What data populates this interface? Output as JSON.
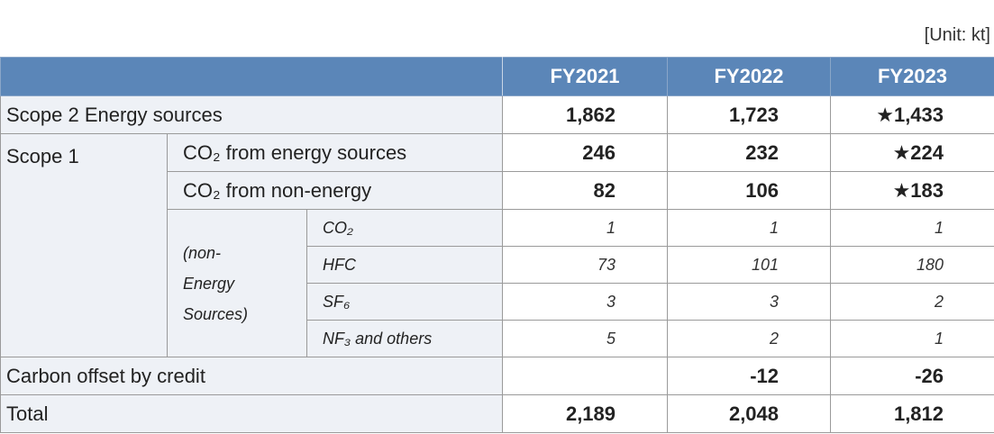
{
  "unit": "[Unit: kt]",
  "table": {
    "header": [
      "FY2021",
      "FY2022",
      "FY2023"
    ],
    "scope2": {
      "label": "Scope 2 Energy sources",
      "values": [
        "1,862",
        "1,723",
        "★1,433"
      ]
    },
    "scope1": {
      "label": "Scope 1",
      "rows": [
        {
          "label": "CO₂ from energy sources",
          "values": [
            "246",
            "232",
            "★224"
          ]
        },
        {
          "label": "CO₂ from non-energy",
          "values": [
            "82",
            "106",
            "★183"
          ]
        }
      ],
      "breakdown": {
        "label": "(non-Energy Sources)",
        "rows": [
          {
            "label": "CO₂",
            "values": [
              "1",
              "1",
              "1"
            ]
          },
          {
            "label": "HFC",
            "values": [
              "73",
              "101",
              "180"
            ]
          },
          {
            "label": "SF₆",
            "values": [
              "3",
              "3",
              "2"
            ]
          },
          {
            "label": "NF₃ and others",
            "values": [
              "5",
              "2",
              "1"
            ]
          }
        ]
      }
    },
    "offset": {
      "label": "Carbon offset by credit",
      "values": [
        null,
        "-12",
        "-26"
      ]
    },
    "total": {
      "label": "Total",
      "values": [
        "2,189",
        "2,048",
        "1,812"
      ]
    }
  }
}
